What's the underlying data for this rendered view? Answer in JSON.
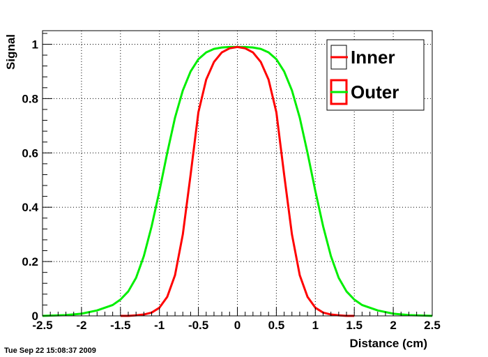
{
  "timestamp": "Tue Sep 22 15:08:37 2009",
  "chart_data": {
    "type": "line",
    "title": "",
    "xlabel": "Distance (cm)",
    "ylabel": "Signal",
    "xlim": [
      -2.5,
      2.5
    ],
    "ylim": [
      0,
      1.05
    ],
    "xticks": [
      -2.5,
      -2,
      -1.5,
      -1,
      -0.5,
      0,
      0.5,
      1,
      1.5,
      2,
      2.5
    ],
    "xtick_labels": [
      "-2.5",
      "-2",
      "-1.5",
      "-1",
      "-0.5",
      "0",
      "0.5",
      "1",
      "1.5",
      "2",
      "2.5"
    ],
    "yticks": [
      0,
      0.2,
      0.4,
      0.6,
      0.8,
      1
    ],
    "ytick_labels": [
      "0",
      "0.2",
      "0.4",
      "0.6",
      "0.8",
      "1"
    ],
    "grid": true,
    "legend_position": "top-right",
    "series": [
      {
        "name": "Inner",
        "color": "#ff0000",
        "x": [
          -1.5,
          -1.4,
          -1.3,
          -1.2,
          -1.1,
          -1.0,
          -0.9,
          -0.8,
          -0.7,
          -0.6,
          -0.5,
          -0.4,
          -0.3,
          -0.2,
          -0.1,
          0,
          0.1,
          0.2,
          0.3,
          0.4,
          0.5,
          0.6,
          0.7,
          0.8,
          0.9,
          1.0,
          1.1,
          1.2,
          1.3,
          1.4,
          1.5
        ],
        "y": [
          0.0,
          0.0,
          0.002,
          0.005,
          0.012,
          0.03,
          0.07,
          0.15,
          0.3,
          0.52,
          0.75,
          0.87,
          0.935,
          0.97,
          0.985,
          0.99,
          0.985,
          0.97,
          0.935,
          0.87,
          0.75,
          0.52,
          0.3,
          0.15,
          0.07,
          0.03,
          0.012,
          0.005,
          0.002,
          0.0,
          0.0
        ]
      },
      {
        "name": "Outer",
        "color": "#00ee00",
        "x": [
          -2.5,
          -2.4,
          -2.2,
          -2.0,
          -1.8,
          -1.6,
          -1.5,
          -1.4,
          -1.3,
          -1.2,
          -1.1,
          -1.0,
          -0.9,
          -0.8,
          -0.7,
          -0.6,
          -0.5,
          -0.4,
          -0.3,
          -0.2,
          -0.1,
          0,
          0.1,
          0.2,
          0.3,
          0.4,
          0.5,
          0.6,
          0.7,
          0.8,
          0.9,
          1.0,
          1.1,
          1.2,
          1.3,
          1.4,
          1.5,
          1.6,
          1.8,
          2.0,
          2.2,
          2.4,
          2.5
        ],
        "y": [
          0.0,
          0.001,
          0.003,
          0.008,
          0.02,
          0.04,
          0.06,
          0.09,
          0.14,
          0.22,
          0.33,
          0.46,
          0.6,
          0.73,
          0.83,
          0.9,
          0.945,
          0.97,
          0.983,
          0.988,
          0.99,
          0.99,
          0.99,
          0.988,
          0.983,
          0.97,
          0.945,
          0.9,
          0.83,
          0.73,
          0.6,
          0.46,
          0.33,
          0.22,
          0.14,
          0.09,
          0.06,
          0.04,
          0.02,
          0.008,
          0.003,
          0.001,
          0.0
        ]
      }
    ]
  }
}
